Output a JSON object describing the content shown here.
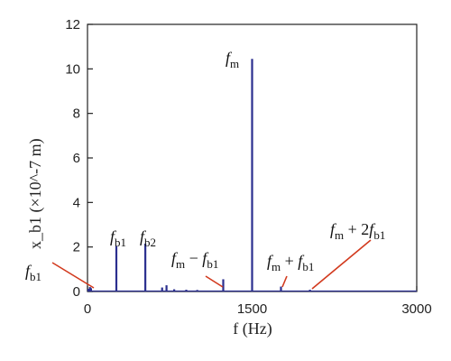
{
  "chart_data": {
    "type": "line",
    "xlabel": "f (Hz)",
    "ylabel": "x_b1 (×10^-7 m)",
    "xlim": [
      0,
      3000
    ],
    "ylim": [
      0,
      12
    ],
    "x_ticks": [
      0,
      1500,
      3000
    ],
    "y_ticks": [
      0,
      2,
      4,
      6,
      8,
      10,
      12
    ],
    "grid": false,
    "series": [
      {
        "color": "#2b2f8f",
        "peaks": [
          {
            "x": 8,
            "y": 0.12
          },
          {
            "x": 22,
            "y": 0.2
          },
          {
            "x": 32,
            "y": 0.15
          },
          {
            "x": 263,
            "y": 2.05
          },
          {
            "x": 527,
            "y": 2.15
          },
          {
            "x": 680,
            "y": 0.18
          },
          {
            "x": 720,
            "y": 0.28
          },
          {
            "x": 790,
            "y": 0.1
          },
          {
            "x": 900,
            "y": 0.08
          },
          {
            "x": 1000,
            "y": 0.07
          },
          {
            "x": 1237,
            "y": 0.55
          },
          {
            "x": 1500,
            "y": 10.45
          },
          {
            "x": 1763,
            "y": 0.22
          },
          {
            "x": 2027,
            "y": 0.08
          }
        ]
      }
    ],
    "annotations": [
      {
        "base": "f",
        "sub": "b1",
        "rest": ""
      },
      {
        "base": "f",
        "sub": "b1",
        "rest": ""
      },
      {
        "base": "f",
        "sub": "b2",
        "rest": ""
      },
      {
        "base": "f",
        "sub": "m",
        "rest": ""
      },
      {
        "base": "f",
        "sub": "m",
        "rest": " − ",
        "base2": "f",
        "sub2": "b1"
      },
      {
        "base": "f",
        "sub": "m",
        "rest": " + ",
        "base2": "f",
        "sub2": "b1"
      },
      {
        "base": "f",
        "sub": "m",
        "rest": " + 2",
        "base2": "f",
        "sub2": "b1"
      }
    ],
    "annotation_color": "#d23a1e"
  }
}
